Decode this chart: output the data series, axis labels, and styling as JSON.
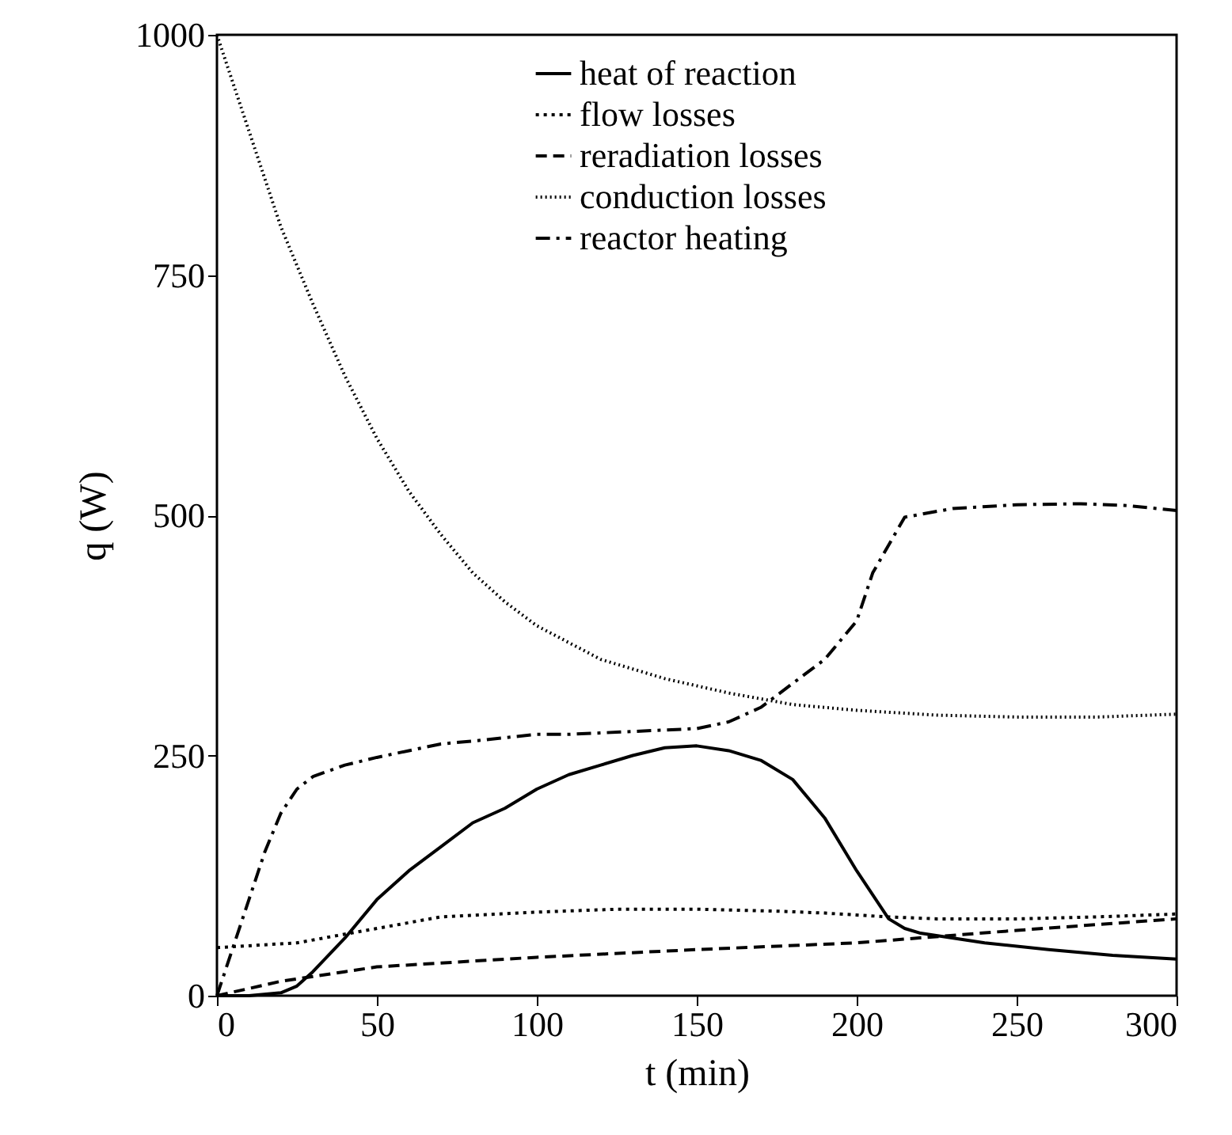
{
  "chart_data": {
    "type": "line",
    "xlabel": "t (min)",
    "ylabel": "q (W)",
    "xlim": [
      0,
      300
    ],
    "ylim": [
      0,
      1000
    ],
    "xticks": [
      0,
      50,
      100,
      150,
      200,
      250,
      300
    ],
    "yticks": [
      0,
      250,
      500,
      750,
      1000
    ],
    "grid": false,
    "legend": "top",
    "marker": "none",
    "series": [
      {
        "name": "heat of reaction",
        "color": "#000000",
        "line_style": "solid",
        "x": [
          0,
          10,
          20,
          25,
          30,
          40,
          50,
          60,
          70,
          80,
          90,
          100,
          110,
          120,
          130,
          140,
          150,
          160,
          170,
          180,
          190,
          200,
          210,
          215,
          220,
          240,
          260,
          280,
          300
        ],
        "values": [
          0,
          0,
          3,
          10,
          25,
          60,
          100,
          130,
          155,
          180,
          195,
          215,
          230,
          240,
          250,
          258,
          260,
          255,
          245,
          225,
          185,
          130,
          80,
          70,
          65,
          55,
          48,
          42,
          38
        ]
      },
      {
        "name": "flow losses",
        "color": "#000000",
        "line_style": "dotted",
        "x": [
          0,
          25,
          50,
          70,
          100,
          125,
          150,
          175,
          190,
          210,
          225,
          250,
          275,
          300
        ],
        "values": [
          50,
          55,
          70,
          82,
          87,
          90,
          90,
          88,
          86,
          82,
          80,
          80,
          82,
          85
        ]
      },
      {
        "name": "reradiation losses",
        "color": "#000000",
        "line_style": "dashed",
        "x": [
          0,
          20,
          40,
          50,
          75,
          100,
          150,
          200,
          250,
          300
        ],
        "values": [
          0,
          15,
          25,
          30,
          35,
          40,
          48,
          55,
          68,
          80
        ]
      },
      {
        "name": "conduction losses",
        "color": "#000000",
        "line_style": "dotted",
        "x": [
          0,
          10,
          20,
          30,
          40,
          50,
          60,
          70,
          80,
          90,
          100,
          120,
          140,
          160,
          180,
          200,
          225,
          250,
          275,
          300
        ],
        "values": [
          1000,
          900,
          800,
          720,
          645,
          580,
          525,
          480,
          440,
          410,
          385,
          350,
          330,
          315,
          303,
          297,
          292,
          290,
          290,
          293
        ]
      },
      {
        "name": "reactor heating",
        "color": "#000000",
        "line_style": "dashdot",
        "x": [
          0,
          5,
          10,
          15,
          20,
          25,
          30,
          40,
          50,
          60,
          70,
          80,
          100,
          110,
          130,
          150,
          160,
          170,
          180,
          190,
          200,
          205,
          215,
          230,
          250,
          270,
          285,
          300
        ],
        "values": [
          0,
          50,
          100,
          150,
          190,
          215,
          228,
          240,
          248,
          255,
          262,
          265,
          272,
          272,
          275,
          278,
          285,
          300,
          325,
          350,
          390,
          440,
          498,
          507,
          511,
          512,
          510,
          505
        ]
      }
    ]
  }
}
